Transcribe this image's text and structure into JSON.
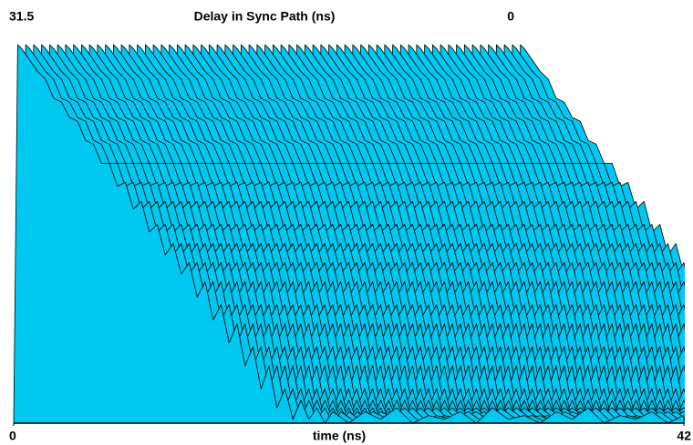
{
  "chart_data": {
    "type": "waterfall",
    "title": "Delay in Sync Path (ns)",
    "xlabel": "time (ns)",
    "xlim": [
      0,
      42
    ],
    "xticks": [
      0,
      42
    ],
    "ylim": [
      0,
      1
    ],
    "delaylim": [
      31.5,
      0
    ],
    "delayticks": [
      31.5,
      0
    ],
    "color": "#00c8f0",
    "delays": [
      31.5,
      31,
      30.5,
      30,
      29.5,
      29,
      28.5,
      28,
      27.5,
      27,
      26.5,
      26,
      25.5,
      25,
      24.5,
      24,
      23.5,
      23,
      22.5,
      22,
      21.5,
      21,
      20.5,
      20,
      19.5,
      19,
      18.5,
      18,
      17.5,
      17,
      16.5,
      16,
      15.5,
      15,
      14.5,
      14,
      13.5,
      13,
      12.5,
      12,
      11.5,
      11,
      10.5,
      10,
      9.5,
      9,
      8.5,
      8,
      7.5,
      7,
      6.5,
      6,
      5.5,
      5,
      4.5,
      4,
      3.5,
      3,
      2.5,
      2,
      1.5,
      1,
      0.5,
      0
    ],
    "trace": {
      "x": [
        0,
        0.25,
        0.5,
        1,
        1.5,
        2,
        2.5,
        3,
        3.5,
        4,
        4.5,
        5,
        5.5,
        6,
        6.5,
        7,
        7.5,
        8,
        8.5,
        9,
        9.5,
        10,
        10.5,
        11,
        11.5,
        12,
        12.5,
        13,
        13.5,
        14,
        14.5,
        15,
        15.5,
        16,
        16.5,
        17,
        17.5,
        18,
        18.5,
        19,
        19.5,
        20,
        21,
        22,
        23,
        24,
        25,
        26,
        27,
        28,
        29,
        30,
        31,
        32,
        33,
        34,
        35,
        36,
        37,
        38,
        39,
        40,
        41,
        42
      ],
      "values": [
        0,
        0.99,
        0.98,
        0.95,
        0.92,
        0.9,
        0.85,
        0.84,
        0.8,
        0.79,
        0.74,
        0.73,
        0.68,
        0.68,
        0.62,
        0.63,
        0.56,
        0.58,
        0.5,
        0.52,
        0.44,
        0.47,
        0.39,
        0.42,
        0.33,
        0.37,
        0.27,
        0.31,
        0.21,
        0.26,
        0.15,
        0.2,
        0.09,
        0.15,
        0.04,
        0.09,
        0.01,
        0.06,
        0.01,
        0.04,
        0,
        0.03,
        0,
        0.03,
        0.01,
        0.04,
        0,
        0.02,
        0.01,
        0.03,
        0,
        0.04,
        0.01,
        0.02,
        0,
        0.03,
        0.01,
        0.04,
        0,
        0.02,
        0.01,
        0.03,
        0,
        0.02
      ]
    }
  }
}
